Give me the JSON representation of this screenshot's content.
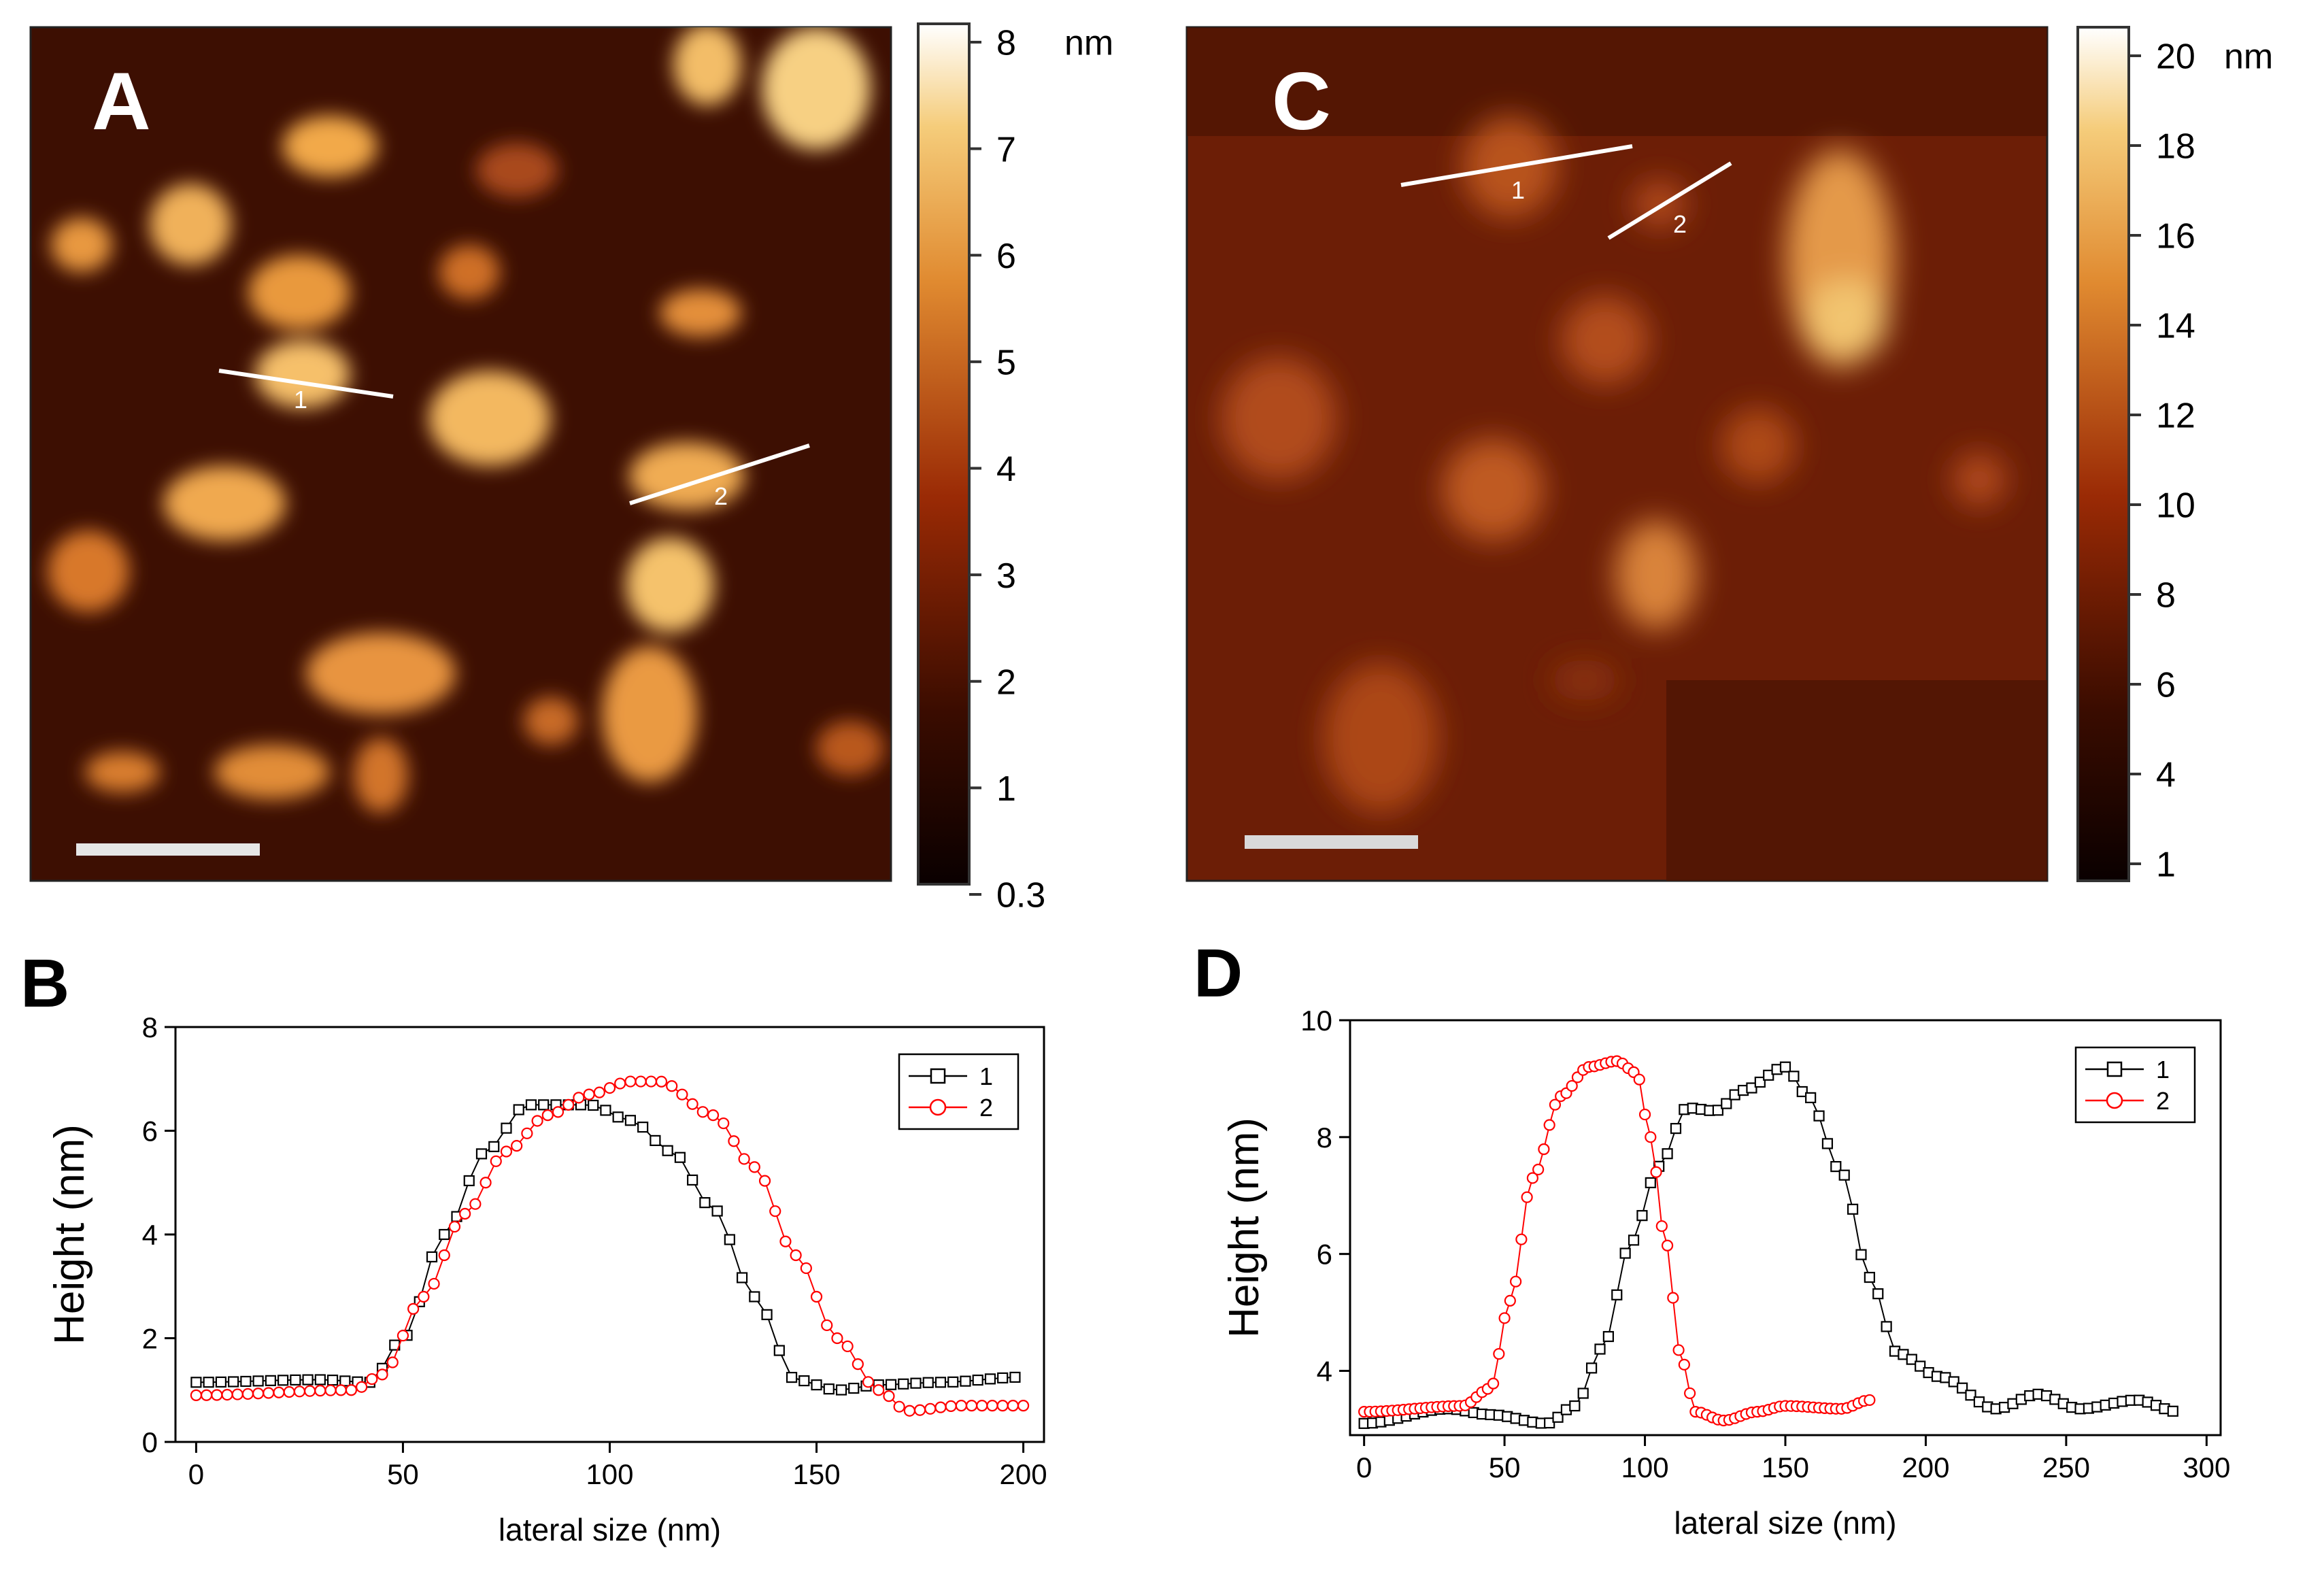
{
  "figure": {
    "panels": {
      "A": {
        "label": "A",
        "colorbar": {
          "unit": "nm",
          "ticks": [
            "8",
            "7",
            "6",
            "5",
            "4",
            "3",
            "2",
            "1",
            "0.3"
          ]
        },
        "markers": [
          "1",
          "2"
        ]
      },
      "C": {
        "label": "C",
        "colorbar": {
          "unit": "nm",
          "ticks": [
            "20",
            "18",
            "16",
            "14",
            "12",
            "10",
            "8",
            "6",
            "4",
            "1"
          ]
        },
        "markers": [
          "1",
          "2"
        ]
      },
      "B": {
        "label": "B"
      },
      "D": {
        "label": "D"
      }
    },
    "colors": {
      "series1": "#000000",
      "series2": "#ff0000"
    }
  },
  "chart_data": [
    {
      "id": "B",
      "type": "line",
      "xlabel": "lateral size (nm)",
      "ylabel": "Height (nm)",
      "xlim": [
        -5,
        205
      ],
      "ylim": [
        0,
        8
      ],
      "xticks": [
        "0",
        "50",
        "100",
        "150",
        "200"
      ],
      "yticks": [
        "0",
        "2",
        "4",
        "6",
        "8"
      ],
      "legend": {
        "position": "top-right",
        "entries": [
          "1",
          "2"
        ]
      },
      "series": [
        {
          "name": "1",
          "marker": "square",
          "color": "#000000",
          "step": 3,
          "knots": [
            [
              0,
              1.15
            ],
            [
              30,
              1.2
            ],
            [
              42,
              1.15
            ],
            [
              50,
              2.0
            ],
            [
              60,
              4.0
            ],
            [
              70,
              5.6
            ],
            [
              80,
              6.5
            ],
            [
              95,
              6.5
            ],
            [
              105,
              6.2
            ],
            [
              115,
              5.6
            ],
            [
              125,
              4.5
            ],
            [
              135,
              2.8
            ],
            [
              145,
              1.2
            ],
            [
              155,
              1.0
            ],
            [
              165,
              1.1
            ],
            [
              180,
              1.15
            ],
            [
              200,
              1.25
            ]
          ]
        },
        {
          "name": "2",
          "marker": "circle",
          "color": "#ff0000",
          "step": 2.5,
          "knots": [
            [
              0,
              0.9
            ],
            [
              38,
              1.0
            ],
            [
              45,
              1.3
            ],
            [
              55,
              2.8
            ],
            [
              65,
              4.4
            ],
            [
              75,
              5.6
            ],
            [
              85,
              6.3
            ],
            [
              95,
              6.7
            ],
            [
              105,
              6.95
            ],
            [
              112,
              6.95
            ],
            [
              125,
              6.3
            ],
            [
              135,
              5.3
            ],
            [
              145,
              3.6
            ],
            [
              155,
              2.0
            ],
            [
              165,
              1.0
            ],
            [
              172,
              0.6
            ],
            [
              185,
              0.7
            ],
            [
              200,
              0.7
            ]
          ]
        }
      ]
    },
    {
      "id": "D",
      "type": "line",
      "xlabel": "lateral size (nm)",
      "ylabel": "Height (nm)",
      "xlim": [
        -5,
        305
      ],
      "ylim": [
        2.9,
        10
      ],
      "xticks": [
        "0",
        "50",
        "100",
        "150",
        "200",
        "250",
        "300"
      ],
      "yticks": [
        "4",
        "6",
        "8",
        "10"
      ],
      "legend": {
        "position": "top-right",
        "entries": [
          "1",
          "2"
        ]
      },
      "series": [
        {
          "name": "1",
          "marker": "square",
          "color": "#000000",
          "step": 3,
          "knots": [
            [
              0,
              3.1
            ],
            [
              30,
              3.35
            ],
            [
              45,
              3.25
            ],
            [
              65,
              3.1
            ],
            [
              75,
              3.4
            ],
            [
              85,
              4.4
            ],
            [
              95,
              6.2
            ],
            [
              105,
              7.5
            ],
            [
              115,
              8.5
            ],
            [
              125,
              8.45
            ],
            [
              135,
              8.8
            ],
            [
              150,
              9.2
            ],
            [
              158,
              8.7
            ],
            [
              170,
              7.4
            ],
            [
              180,
              5.6
            ],
            [
              190,
              4.3
            ],
            [
              205,
              3.9
            ],
            [
              225,
              3.35
            ],
            [
              240,
              3.6
            ],
            [
              255,
              3.35
            ],
            [
              275,
              3.5
            ],
            [
              290,
              3.3
            ]
          ]
        },
        {
          "name": "2",
          "marker": "circle",
          "color": "#ff0000",
          "step": 2,
          "knots": [
            [
              0,
              3.3
            ],
            [
              35,
              3.4
            ],
            [
              45,
              3.7
            ],
            [
              52,
              5.2
            ],
            [
              60,
              7.3
            ],
            [
              70,
              8.7
            ],
            [
              80,
              9.2
            ],
            [
              90,
              9.3
            ],
            [
              97,
              9.1
            ],
            [
              102,
              8.0
            ],
            [
              107,
              6.3
            ],
            [
              113,
              4.2
            ],
            [
              118,
              3.3
            ],
            [
              128,
              3.15
            ],
            [
              140,
              3.3
            ],
            [
              150,
              3.4
            ],
            [
              170,
              3.35
            ],
            [
              180,
              3.5
            ]
          ]
        }
      ]
    }
  ]
}
